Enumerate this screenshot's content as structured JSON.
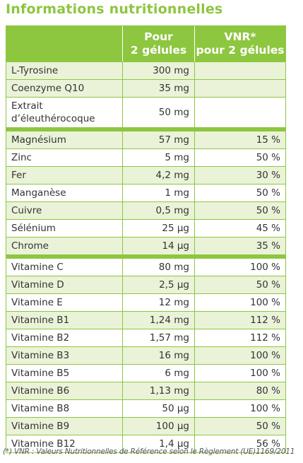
{
  "title": "Informations nutritionnelles",
  "header": {
    "col2_line1": "Pour",
    "col2_line2": "2 gélules",
    "col3_line1": "VNR*",
    "col3_line2": "pour 2 gélules"
  },
  "groups": [
    {
      "rows": [
        {
          "name": "L-Tyrosine",
          "amount": "300 mg",
          "vnr": ""
        },
        {
          "name": "Coenzyme Q10",
          "amount": "35 mg",
          "vnr": ""
        },
        {
          "name": "Extrait d’éleuthérocoque",
          "amount": "50 mg",
          "vnr": ""
        }
      ]
    },
    {
      "rows": [
        {
          "name": "Magnésium",
          "amount": "57 mg",
          "vnr": "15 %"
        },
        {
          "name": "Zinc",
          "amount": "5 mg",
          "vnr": "50 %"
        },
        {
          "name": "Fer",
          "amount": "4,2 mg",
          "vnr": "30 %"
        },
        {
          "name": "Manganèse",
          "amount": "1 mg",
          "vnr": "50 %"
        },
        {
          "name": "Cuivre",
          "amount": "0,5 mg",
          "vnr": "50 %"
        },
        {
          "name": "Sélénium",
          "amount": "25 µg",
          "vnr": "45 %"
        },
        {
          "name": "Chrome",
          "amount": "14 µg",
          "vnr": "35 %"
        }
      ]
    },
    {
      "rows": [
        {
          "name": "Vitamine C",
          "amount": "80 mg",
          "vnr": "100 %"
        },
        {
          "name": "Vitamine D",
          "amount": "2,5 µg",
          "vnr": "50 %"
        },
        {
          "name": "Vitamine E",
          "amount": "12 mg",
          "vnr": "100 %"
        },
        {
          "name": "Vitamine B1",
          "amount": "1,24 mg",
          "vnr": "112 %"
        },
        {
          "name": "Vitamine B2",
          "amount": "1,57 mg",
          "vnr": "112 %"
        },
        {
          "name": "Vitamine B3",
          "amount": "16 mg",
          "vnr": "100 %"
        },
        {
          "name": "Vitamine B5",
          "amount": "6 mg",
          "vnr": "100 %"
        },
        {
          "name": "Vitamine B6",
          "amount": "1,13 mg",
          "vnr": "80 %"
        },
        {
          "name": "Vitamine B8",
          "amount": "50 µg",
          "vnr": "100 %"
        },
        {
          "name": "Vitamine B9",
          "amount": "100 µg",
          "vnr": "50 %"
        },
        {
          "name": "Vitamine B12",
          "amount": "1,4 µg",
          "vnr": "56 %"
        }
      ]
    }
  ],
  "footnote": "(*) VNR : Valeurs Nutritionnelles de Référence selon le Règlement (UE)1169/2011",
  "colors": {
    "accent": "#8dc63f",
    "row_shade": "#eaf3d8"
  }
}
